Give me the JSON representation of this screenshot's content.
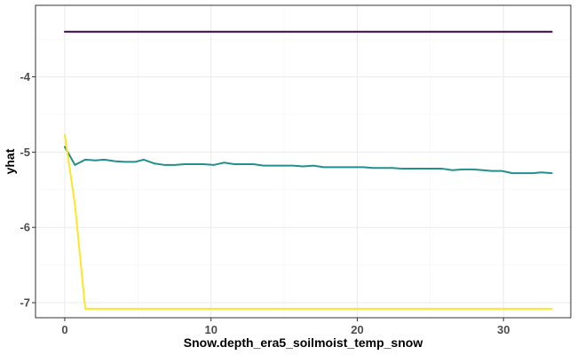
{
  "chart_data": {
    "type": "line",
    "xlabel": "Snow.depth_era5_soilmoist_temp_snow",
    "ylabel": "yhat",
    "xlim": [
      -2,
      34.6
    ],
    "ylim": [
      -7.2,
      -3.05
    ],
    "x_ticks": [
      0,
      10,
      20,
      30
    ],
    "y_ticks": [
      -7,
      -6,
      -5,
      -4
    ],
    "x_tick_labels": [
      "0",
      "10",
      "20",
      "30"
    ],
    "y_tick_labels": [
      "-7",
      "-6",
      "-5",
      "-4"
    ],
    "grid": true,
    "legend": "none",
    "series": [
      {
        "color": "#440154",
        "x": [
          0,
          33.3
        ],
        "y": [
          -3.4,
          -3.4
        ]
      },
      {
        "color": "#21908c",
        "x": [
          0,
          0.7,
          1.4,
          2.1,
          2.7,
          3.4,
          4.1,
          4.8,
          5.4,
          6.1,
          6.8,
          7.5,
          8.2,
          8.8,
          9.5,
          10.2,
          10.9,
          11.6,
          12.2,
          12.9,
          13.6,
          14.3,
          15.0,
          15.6,
          16.3,
          17.0,
          17.7,
          18.4,
          19.0,
          19.7,
          20.4,
          21.1,
          21.8,
          22.4,
          23.1,
          23.8,
          24.5,
          25.2,
          25.8,
          26.5,
          27.2,
          27.9,
          28.6,
          29.2,
          29.9,
          30.6,
          31.3,
          32.0,
          32.6,
          33.3
        ],
        "y": [
          -4.93,
          -5.17,
          -5.1,
          -5.11,
          -5.1,
          -5.12,
          -5.13,
          -5.13,
          -5.1,
          -5.15,
          -5.17,
          -5.17,
          -5.16,
          -5.16,
          -5.16,
          -5.17,
          -5.14,
          -5.16,
          -5.16,
          -5.16,
          -5.18,
          -5.18,
          -5.18,
          -5.18,
          -5.19,
          -5.18,
          -5.2,
          -5.2,
          -5.2,
          -5.2,
          -5.2,
          -5.21,
          -5.21,
          -5.21,
          -5.22,
          -5.22,
          -5.22,
          -5.22,
          -5.22,
          -5.24,
          -5.23,
          -5.23,
          -5.24,
          -5.25,
          -5.25,
          -5.28,
          -5.28,
          -5.28,
          -5.27,
          -5.28
        ]
      },
      {
        "color": "#fde725",
        "x": [
          0,
          0.7,
          1.4,
          2.0,
          33.3
        ],
        "y": [
          -4.77,
          -5.7,
          -7.08,
          -7.08,
          -7.08
        ]
      }
    ]
  }
}
